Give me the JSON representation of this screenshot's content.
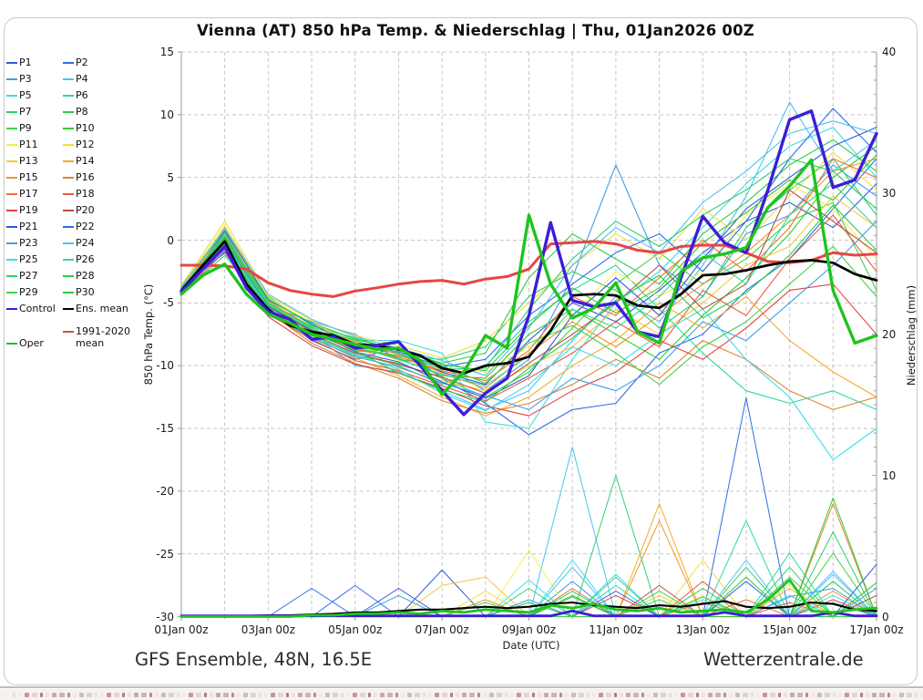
{
  "title": "Vienna  (AT)  850 hPa Temp. & Niederschlag | Thu, 01Jan2026 00Z",
  "footer_left": "GFS Ensemble, 48N, 16.5E",
  "footer_right": "Wetterzentrale.de",
  "colors": {
    "grid": "#c6c6c6",
    "axis": "#aaaaaa",
    "accent_control": "#3d1dd6",
    "accent_oper": "#1ec41e",
    "accent_mean": "#000000",
    "accent_climate": "#e84545"
  },
  "chart_data": {
    "type": "line",
    "title": "Vienna  (AT)  850 hPa Temp. & Niederschlag | Thu, 01Jan2026 00Z",
    "x_axis": {
      "label": "Date (UTC)",
      "tick_labels": [
        "01Jan 00z",
        "03Jan 00z",
        "05Jan 00z",
        "07Jan 00z",
        "09Jan 00z",
        "11Jan 00z",
        "13Jan 00z",
        "15Jan 00z",
        "17Jan 00z"
      ],
      "tick_days": [
        1,
        3,
        5,
        7,
        9,
        11,
        13,
        15,
        17
      ],
      "range_days": [
        1,
        17
      ],
      "grid_every_days": 1
    },
    "y_left": {
      "label": "850 hPa Temp. (°C)",
      "ticks": [
        15,
        10,
        5,
        0,
        -5,
        -10,
        -15,
        -20,
        -25,
        -30
      ],
      "range": [
        -30,
        15
      ]
    },
    "y_right": {
      "label": "Niederschlag (mm)",
      "ticks": [
        40,
        30,
        20,
        10,
        0
      ],
      "range": [
        0,
        40
      ],
      "minor_tick_step": 1
    },
    "x_main": {
      "start": 1,
      "step": 0.5,
      "count": 33
    },
    "x_members": {
      "start": 1,
      "step": 1,
      "count": 17
    },
    "main_series": [
      {
        "name": "1991-2020 mean",
        "legend_lines": [
          "1991-2020",
          "mean"
        ],
        "color": "#e84545",
        "width": 3,
        "temp": [
          -2.0,
          -2.0,
          -2.05,
          -2.3,
          -3.4,
          -4.0,
          -4.3,
          -4.5,
          -4.05,
          -3.8,
          -3.5,
          -3.3,
          -3.2,
          -3.5,
          -3.1,
          -2.9,
          -2.3,
          -0.3,
          -0.2,
          -0.1,
          -0.3,
          -0.8,
          -1.0,
          -0.5,
          -0.4,
          -0.4,
          -1.0,
          -1.7,
          -1.8,
          -1.6,
          -1.0,
          -1.2,
          -1.1
        ]
      },
      {
        "name": "Ens. mean",
        "color": "#000000",
        "width": 2.7,
        "temp": [
          -4.0,
          -2.0,
          -0.1,
          -3.5,
          -5.5,
          -6.8,
          -7.3,
          -7.6,
          -8.3,
          -8.4,
          -8.7,
          -9.2,
          -10.2,
          -10.6,
          -10.0,
          -9.8,
          -9.3,
          -7.2,
          -4.4,
          -4.3,
          -4.4,
          -5.2,
          -5.4,
          -4.3,
          -2.8,
          -2.7,
          -2.4,
          -2.0,
          -1.7,
          -1.6,
          -1.8,
          -2.7,
          -3.2
        ],
        "precip": [
          0,
          0,
          0,
          0.05,
          0.1,
          0.1,
          0.15,
          0.2,
          0.3,
          0.3,
          0.4,
          0.5,
          0.5,
          0.6,
          0.7,
          0.6,
          0.7,
          0.9,
          1.0,
          0.8,
          0.7,
          0.6,
          0.8,
          0.7,
          0.9,
          1.1,
          0.7,
          0.6,
          0.7,
          1.0,
          0.9,
          0.5,
          0.4
        ]
      },
      {
        "name": "Control",
        "color": "#3d1dd6",
        "width": 3.4,
        "temp": [
          -4.1,
          -2.3,
          -0.5,
          -3.8,
          -5.7,
          -6.3,
          -7.9,
          -7.7,
          -8.6,
          -8.4,
          -8.1,
          -10.0,
          -12.0,
          -13.9,
          -12.2,
          -11.0,
          -6.0,
          1.4,
          -4.8,
          -5.3,
          -5.0,
          -7.3,
          -7.7,
          -3.0,
          1.9,
          -0.2,
          -1.0,
          4.0,
          9.6,
          10.3,
          4.2,
          4.8,
          8.5
        ],
        "precip": [
          0.05,
          0.05,
          0.05,
          0.05,
          0.05,
          0.05,
          0.05,
          0.05,
          0.05,
          0.05,
          0.05,
          0.05,
          0.05,
          0.05,
          0.05,
          0.05,
          0.05,
          0.05,
          0.4,
          0.05,
          0.05,
          0.05,
          0.05,
          0.05,
          0.05,
          0.3,
          0.05,
          0.05,
          0.05,
          0.05,
          0.3,
          0.05,
          0.05
        ]
      },
      {
        "name": "Oper",
        "color": "#1ec41e",
        "width": 3.4,
        "temp": [
          -4.3,
          -2.8,
          -1.9,
          -4.3,
          -5.9,
          -6.6,
          -7.5,
          -7.9,
          -8.3,
          -8.7,
          -8.6,
          -9.6,
          -12.3,
          -10.5,
          -7.6,
          -8.6,
          2.0,
          -3.5,
          -6.2,
          -5.4,
          -3.4,
          -7.3,
          -8.2,
          -2.5,
          -1.4,
          -1.1,
          -0.6,
          2.6,
          4.3,
          6.4,
          -4.0,
          -8.2,
          -7.6
        ],
        "precip": [
          0,
          0,
          0,
          0,
          0,
          0,
          0.1,
          0.1,
          0.2,
          0.2,
          0.3,
          0.2,
          0.4,
          0.3,
          0.5,
          0.4,
          0.3,
          0.8,
          0.6,
          0.9,
          0.5,
          0.4,
          0.6,
          0.3,
          0.4,
          0.5,
          0.3,
          1.2,
          2.6,
          0.4,
          0.3,
          0.5,
          0.6
        ]
      }
    ],
    "members": [
      {
        "name": "P1",
        "color": "#2f5ad7",
        "temp": [
          -4.0,
          -0.5,
          -5.0,
          -7.0,
          -8.5,
          -9.0,
          -10.5,
          -11.5,
          -8.0,
          -5.0,
          -6.5,
          -4.0,
          -1.0,
          1.5,
          3.0,
          1.0,
          4.5
        ],
        "precip_spikes": {
          "7": 3.3
        }
      },
      {
        "name": "P2",
        "color": "#2d6ee8",
        "temp": [
          -3.8,
          -1.0,
          -5.5,
          -8.0,
          -9.5,
          -8.5,
          -11.0,
          -13.0,
          -15.5,
          -13.5,
          -13.0,
          -9.0,
          -7.5,
          -4.0,
          -1.5,
          2.5,
          6.5
        ],
        "precip_spikes": {
          "4": 2.0,
          "14": 15.5
        }
      },
      {
        "name": "P3",
        "color": "#3f9fe8",
        "temp": [
          -4.2,
          0.5,
          -5.2,
          -6.5,
          -7.5,
          -9.5,
          -10.0,
          -12.0,
          -9.5,
          -3.0,
          6.0,
          -2.0,
          -4.5,
          0.5,
          2.0,
          6.0,
          3.5
        ],
        "precip_spikes": {
          "6": 1.5,
          "10": 2.5,
          "17": 2.0
        }
      },
      {
        "name": "P4",
        "color": "#4cc2f1",
        "temp": [
          -4.0,
          -0.8,
          -6.0,
          -7.5,
          -10.0,
          -10.5,
          -12.0,
          -13.5,
          -12.0,
          -8.0,
          -4.5,
          -6.5,
          -2.0,
          3.5,
          11.0,
          5.5,
          8.0
        ],
        "precip_spikes": {
          "10": 12.0,
          "16": 3.2
        }
      },
      {
        "name": "P5",
        "color": "#3adce8",
        "temp": [
          -3.9,
          0.2,
          -4.8,
          -7.2,
          -8.0,
          -8.0,
          -9.0,
          -14.5,
          -15.0,
          -9.5,
          -5.0,
          -2.5,
          1.0,
          4.5,
          7.5,
          9.0,
          5.0
        ],
        "precip_spikes": {
          "9": 2.6,
          "11": 3.0,
          "15": 1.5
        }
      },
      {
        "name": "P6",
        "color": "#2fd7a2",
        "temp": [
          -4.1,
          -0.3,
          -5.8,
          -7.8,
          -9.0,
          -10.0,
          -11.5,
          -10.0,
          -6.5,
          -4.0,
          -2.0,
          -5.5,
          -9.0,
          -12.0,
          -13.0,
          -12.0,
          -13.5
        ],
        "precip_spikes": {
          "11": 2.2,
          "14": 6.8,
          "16": 1.0
        }
      },
      {
        "name": "P7",
        "color": "#2fd06e",
        "temp": [
          -4.3,
          -1.2,
          -5.4,
          -7.0,
          -8.8,
          -9.2,
          -9.5,
          -8.5,
          -4.5,
          -2.5,
          -4.0,
          -7.0,
          -4.5,
          1.0,
          4.0,
          6.5,
          2.0
        ],
        "precip_spikes": {
          "11": 10.0,
          "15": 3.5
        }
      },
      {
        "name": "P8",
        "color": "#2bcb4e",
        "temp": [
          -4.0,
          0.8,
          -4.5,
          -6.8,
          -7.8,
          -8.8,
          -9.8,
          -9.0,
          -3.0,
          0.5,
          -1.5,
          -3.5,
          0.5,
          3.0,
          6.0,
          8.0,
          5.5
        ],
        "precip_spikes": {
          "10": 1.5,
          "13": 2.0,
          "16": 2.5
        }
      },
      {
        "name": "P9",
        "color": "#41d34a",
        "temp": [
          -4.2,
          -0.2,
          -5.6,
          -7.6,
          -9.2,
          -9.8,
          -11.0,
          -12.5,
          -10.5,
          -7.0,
          -3.5,
          -1.0,
          -3.5,
          -1.5,
          1.5,
          3.0,
          -4.0
        ],
        "precip_spikes": {
          "12": 1.2,
          "16": 4.5
        }
      },
      {
        "name": "P10",
        "color": "#31c931",
        "temp": [
          -3.9,
          0.0,
          -5.0,
          -7.4,
          -8.6,
          -9.4,
          -10.8,
          -11.0,
          -7.5,
          -5.5,
          -7.5,
          -9.5,
          -6.0,
          -3.0,
          0.5,
          5.0,
          7.5
        ],
        "precip_spikes": {
          "9": 1.0,
          "14": 2.8
        }
      },
      {
        "name": "P11",
        "color": "#f3ef52",
        "temp": [
          -3.7,
          1.2,
          -4.6,
          -6.6,
          -8.2,
          -9.6,
          -10.2,
          -10.5,
          -8.5,
          -6.0,
          -2.5,
          -4.5,
          -2.5,
          2.0,
          4.5,
          2.5,
          -1.5
        ],
        "precip_spikes": {
          "9": 4.7,
          "13": 1.5,
          "15": 2.2
        }
      },
      {
        "name": "P12",
        "color": "#efdc45",
        "temp": [
          -3.6,
          1.5,
          -4.4,
          -6.4,
          -7.6,
          -8.4,
          -9.4,
          -8.0,
          -5.0,
          -2.0,
          0.5,
          -1.5,
          2.5,
          0.0,
          3.5,
          7.0,
          4.0
        ],
        "precip_spikes": {
          "8": 1.8,
          "13": 4.0
        }
      },
      {
        "name": "P13",
        "color": "#f3c93c",
        "temp": [
          -3.8,
          0.6,
          -5.1,
          -7.1,
          -8.4,
          -10.2,
          -11.2,
          -12.0,
          -10.0,
          -8.5,
          -5.5,
          -7.5,
          -5.0,
          -2.0,
          -0.5,
          3.5,
          1.0
        ],
        "precip_spikes": {
          "7": 2.2,
          "8": 2.8,
          "12": 1.5
        }
      },
      {
        "name": "P14",
        "color": "#f4ab2c",
        "temp": [
          -4.1,
          0.4,
          -5.3,
          -7.7,
          -9.4,
          -10.8,
          -12.5,
          -14.0,
          -12.5,
          -10.0,
          -8.0,
          -5.0,
          -7.0,
          -4.5,
          -8.0,
          -10.5,
          -12.5
        ],
        "precip_spikes": {
          "12": 8.0,
          "15": 2.0
        }
      },
      {
        "name": "P15",
        "color": "#ef9526",
        "temp": [
          -4.0,
          1.0,
          -4.9,
          -6.9,
          -8.1,
          -9.1,
          -10.6,
          -11.8,
          -9.0,
          -6.5,
          -8.5,
          -6.0,
          -3.5,
          -1.0,
          2.0,
          5.5,
          6.5
        ],
        "precip_spikes": {
          "8": 1.2,
          "12": 6.8,
          "16": 1.8
        }
      },
      {
        "name": "P16",
        "color": "#d98630",
        "temp": [
          -4.2,
          -0.6,
          -5.7,
          -8.2,
          -9.8,
          -11.0,
          -12.8,
          -13.8,
          -13.0,
          -11.5,
          -9.5,
          -11.0,
          -8.0,
          -9.5,
          -12.0,
          -13.5,
          -12.5
        ],
        "precip_spikes": {
          "13": 1.0,
          "16": 8.0
        }
      },
      {
        "name": "P17",
        "color": "#ef7133",
        "temp": [
          -3.9,
          0.3,
          -5.2,
          -7.3,
          -8.7,
          -9.3,
          -10.4,
          -11.2,
          -8.8,
          -4.5,
          -6.0,
          -3.0,
          0.0,
          -2.5,
          1.0,
          6.5,
          5.0
        ],
        "precip_spikes": {
          "10": 2.0,
          "14": 1.2
        }
      },
      {
        "name": "P18",
        "color": "#e75f3d",
        "temp": [
          -4.1,
          -0.4,
          -5.9,
          -7.9,
          -9.6,
          -10.4,
          -11.6,
          -12.8,
          -11.0,
          -9.0,
          -6.5,
          -8.5,
          -4.0,
          -6.0,
          -1.5,
          2.0,
          -2.5
        ],
        "precip_spikes": {
          "13": 2.5,
          "15": 1.0
        }
      },
      {
        "name": "P19",
        "color": "#e04343",
        "temp": [
          -4.3,
          -0.9,
          -6.1,
          -8.4,
          -9.9,
          -10.6,
          -11.8,
          -13.2,
          -14.0,
          -12.0,
          -10.5,
          -8.0,
          -9.5,
          -7.0,
          -4.0,
          -3.5,
          -7.5
        ],
        "precip_spikes": {
          "11": 1.5,
          "16": 1.2
        }
      },
      {
        "name": "P20",
        "color": "#bc4a46",
        "temp": [
          -4.0,
          0.1,
          -5.5,
          -7.5,
          -9.0,
          -9.9,
          -10.9,
          -12.2,
          -9.8,
          -7.5,
          -5.0,
          -2.0,
          -5.5,
          -3.5,
          4.0,
          1.5,
          -1.0
        ],
        "precip_spikes": {
          "12": 2.2,
          "17": 1.5
        }
      },
      {
        "name": "P21",
        "color": "#2f5ad7",
        "temp": [
          -3.8,
          -0.1,
          -5.3,
          -7.2,
          -8.9,
          -9.7,
          -11.3,
          -12.6,
          -10.8,
          -6.0,
          -3.0,
          -6.0,
          -1.5,
          2.5,
          5.0,
          7.5,
          9.0
        ],
        "precip_spikes": {
          "6": 2.0,
          "17": 3.7
        }
      },
      {
        "name": "P22",
        "color": "#2d6ee8",
        "temp": [
          -4.2,
          0.7,
          -4.7,
          -6.7,
          -8.3,
          -8.9,
          -10.1,
          -9.5,
          -6.0,
          -3.5,
          -1.0,
          0.5,
          -2.5,
          1.5,
          6.5,
          10.5,
          7.0
        ],
        "precip_spikes": {
          "5": 2.2,
          "11": 1.8,
          "14": 2.5
        }
      },
      {
        "name": "P23",
        "color": "#3f9fe8",
        "temp": [
          -4.1,
          -0.7,
          -5.6,
          -7.8,
          -9.3,
          -10.1,
          -11.4,
          -12.4,
          -13.5,
          -11.0,
          -12.0,
          -10.0,
          -6.5,
          -8.0,
          -5.0,
          -2.0,
          1.5
        ],
        "precip_spikes": {
          "9": 1.2,
          "15": 1.4,
          "16": 2.0
        }
      },
      {
        "name": "P24",
        "color": "#4cc2f1",
        "temp": [
          -3.7,
          0.9,
          -4.3,
          -6.3,
          -7.7,
          -8.6,
          -9.6,
          -10.8,
          -7.0,
          -2.0,
          1.0,
          -1.0,
          3.0,
          5.5,
          8.5,
          9.5,
          8.5
        ],
        "precip_spikes": {
          "10": 3.5,
          "14": 4.0,
          "16": 3.0
        }
      },
      {
        "name": "P25",
        "color": "#3adce8",
        "temp": [
          -4.0,
          -0.2,
          -5.4,
          -7.6,
          -9.1,
          -10.3,
          -12.2,
          -13.6,
          -11.5,
          -8.5,
          -10.0,
          -7.5,
          -5.5,
          -9.5,
          -12.5,
          -17.5,
          -15.0
        ],
        "precip_spikes": {
          "10": 4.0,
          "13": 1.2,
          "16": 1.5
        }
      },
      {
        "name": "P26",
        "color": "#2fd7a2",
        "temp": [
          -3.9,
          0.5,
          -5.0,
          -7.0,
          -8.5,
          -9.5,
          -10.7,
          -11.6,
          -9.2,
          -5.5,
          -7.0,
          -4.5,
          -1.0,
          -3.5,
          2.0,
          4.5,
          1.0
        ],
        "precip_spikes": {
          "11": 2.8,
          "15": 4.5
        }
      },
      {
        "name": "P27",
        "color": "#2fd06e",
        "temp": [
          -4.1,
          0.2,
          -5.1,
          -6.9,
          -8.0,
          -9.0,
          -10.3,
          -10.2,
          -5.5,
          -1.5,
          1.5,
          -0.5,
          2.0,
          4.0,
          6.5,
          5.5,
          2.5
        ],
        "precip_spikes": {
          "9": 2.0,
          "14": 3.5,
          "16": 6.0
        }
      },
      {
        "name": "P28",
        "color": "#2bcb4e",
        "temp": [
          -4.3,
          -0.5,
          -5.8,
          -7.4,
          -8.8,
          -10.6,
          -11.9,
          -12.9,
          -10.2,
          -7.8,
          -4.8,
          -2.8,
          -6.2,
          -4.2,
          -1.2,
          2.8,
          -0.8
        ],
        "precip_spikes": {
          "10": 1.8,
          "13": 1.4,
          "17": 2.4
        }
      },
      {
        "name": "P29",
        "color": "#41d34a",
        "temp": [
          -3.8,
          0.0,
          -5.2,
          -7.1,
          -8.6,
          -9.2,
          -10.0,
          -11.4,
          -8.2,
          -6.8,
          -9.0,
          -11.5,
          -8.5,
          -6.5,
          -3.5,
          -0.5,
          -4.5
        ],
        "precip_spikes": {
          "8": 1.0,
          "12": 1.8,
          "15": 2.8
        }
      },
      {
        "name": "P30",
        "color": "#31c931",
        "temp": [
          -4.0,
          0.3,
          -4.8,
          -6.6,
          -7.9,
          -8.7,
          -9.9,
          -10.4,
          -6.8,
          -3.8,
          -5.8,
          -3.8,
          -0.2,
          2.2,
          4.8,
          3.2,
          6.8
        ],
        "precip_spikes": {
          "10": 1.4,
          "16": 8.4
        }
      }
    ]
  },
  "bottom_strip": {
    "palette": [
      "#e6dedc",
      "#d2b2b0",
      "#c59694",
      "#efe8e6",
      "#b57e7c",
      "#dcd2d0",
      "#c7aaa8",
      "#f0ebe9",
      "#bb8a88",
      "#e1d6d4",
      "#cfbcba",
      "#e9e2e0"
    ]
  }
}
